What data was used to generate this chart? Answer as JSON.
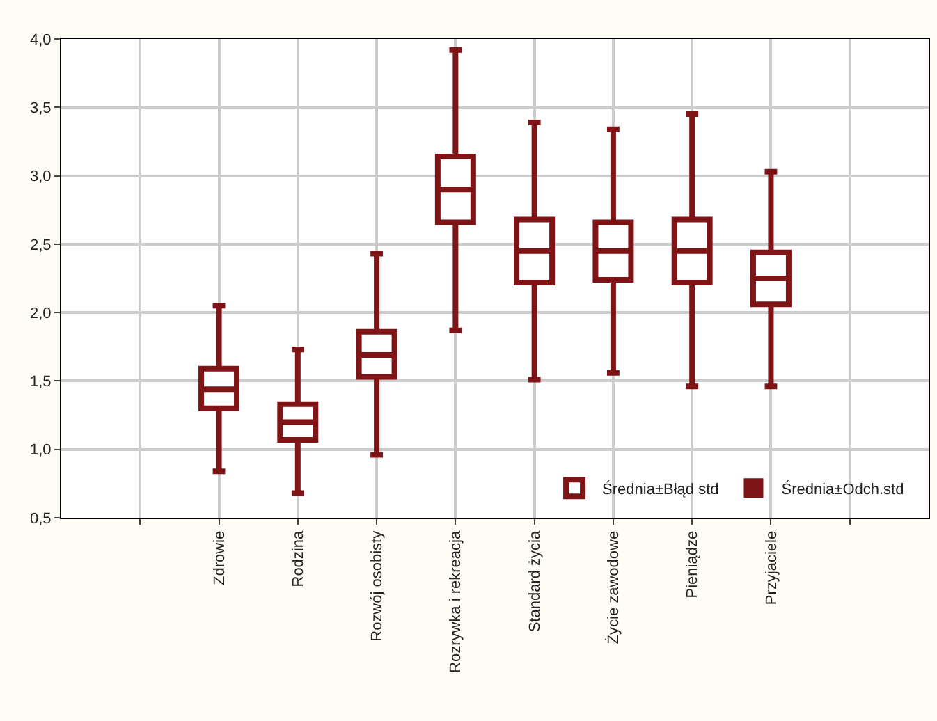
{
  "chart_data": {
    "type": "box",
    "categories": [
      null,
      "Zdrowie",
      "Rodzina",
      "Rozwój osobisty",
      "Rozrywka i rekreacja",
      "Standard życia",
      "Życie zawodowe",
      "Pieniądze",
      "Przyjaciele",
      null
    ],
    "series": [
      {
        "name": "Średnia±Błąd std",
        "color": "#7f1416",
        "boxes": [
          null,
          {
            "low": 0.84,
            "q1": 1.3,
            "median": 1.44,
            "q3": 1.59,
            "high": 2.05
          },
          {
            "low": 0.68,
            "q1": 1.07,
            "median": 1.2,
            "q3": 1.33,
            "high": 1.73
          },
          {
            "low": 0.96,
            "q1": 1.53,
            "median": 1.69,
            "q3": 1.86,
            "high": 2.43
          },
          {
            "low": 1.87,
            "q1": 2.66,
            "median": 2.9,
            "q3": 3.14,
            "high": 3.92
          },
          {
            "low": 1.51,
            "q1": 2.22,
            "median": 2.45,
            "q3": 2.68,
            "high": 3.39
          },
          {
            "low": 1.56,
            "q1": 2.24,
            "median": 2.45,
            "q3": 2.66,
            "high": 3.34
          },
          {
            "low": 1.46,
            "q1": 2.22,
            "median": 2.45,
            "q3": 2.68,
            "high": 3.45
          },
          {
            "low": 1.46,
            "q1": 2.06,
            "median": 2.25,
            "q3": 2.44,
            "high": 3.03
          },
          null
        ]
      }
    ],
    "annotations": [
      "Średnia±Odch.std"
    ],
    "ylim": [
      0.5,
      4.0
    ],
    "yticks": [
      {
        "value": 0.5,
        "label": "0,5"
      },
      {
        "value": 1.0,
        "label": "1,0"
      },
      {
        "value": 1.5,
        "label": "1,5"
      },
      {
        "value": 2.0,
        "label": "2,0"
      },
      {
        "value": 2.5,
        "label": "2,5"
      },
      {
        "value": 3.0,
        "label": "3,0"
      },
      {
        "value": 3.5,
        "label": "3,5"
      },
      {
        "value": 4.0,
        "label": "4,0"
      }
    ],
    "grid": true,
    "legend": "bottom right"
  }
}
